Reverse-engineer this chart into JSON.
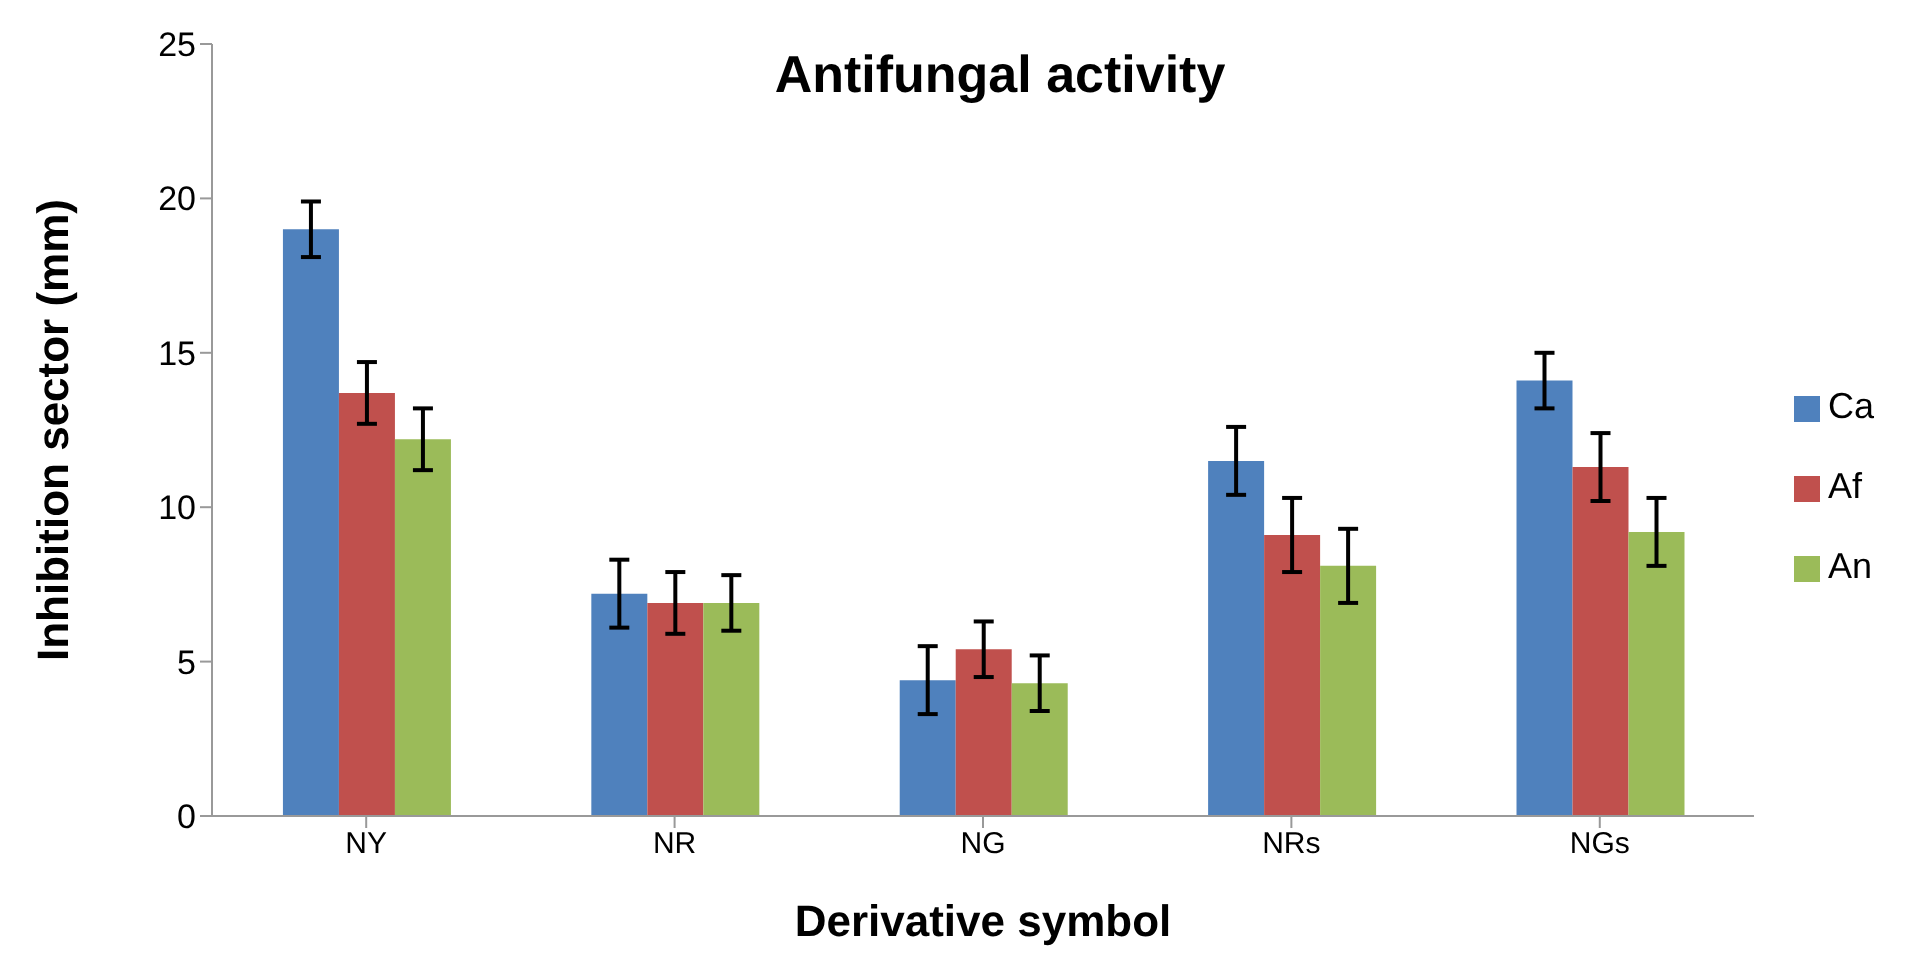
{
  "chart_data": {
    "type": "bar",
    "title": "Antifungal activity",
    "xlabel": "Derivative symbol",
    "ylabel": "Inhibition sector (mm)",
    "categories": [
      "NY",
      "NR",
      "NG",
      "NRs",
      "NGs"
    ],
    "series": [
      {
        "name": "Ca",
        "color": "#4f81bd",
        "values": [
          19.0,
          7.2,
          4.4,
          11.5,
          14.1
        ],
        "errors": [
          0.9,
          1.1,
          1.1,
          1.1,
          0.9
        ]
      },
      {
        "name": "Af",
        "color": "#c0504d",
        "values": [
          13.7,
          6.9,
          5.4,
          9.1,
          11.3
        ],
        "errors": [
          1.0,
          1.0,
          0.9,
          1.2,
          1.1
        ]
      },
      {
        "name": "An",
        "color": "#9bbb59",
        "values": [
          12.2,
          6.9,
          4.3,
          8.1,
          9.2
        ],
        "errors": [
          1.0,
          0.9,
          0.9,
          1.2,
          1.1
        ]
      }
    ],
    "ylim": [
      0,
      25
    ],
    "yticks": [
      0,
      5,
      10,
      15,
      20,
      25
    ],
    "grid": false,
    "legend": "right"
  }
}
